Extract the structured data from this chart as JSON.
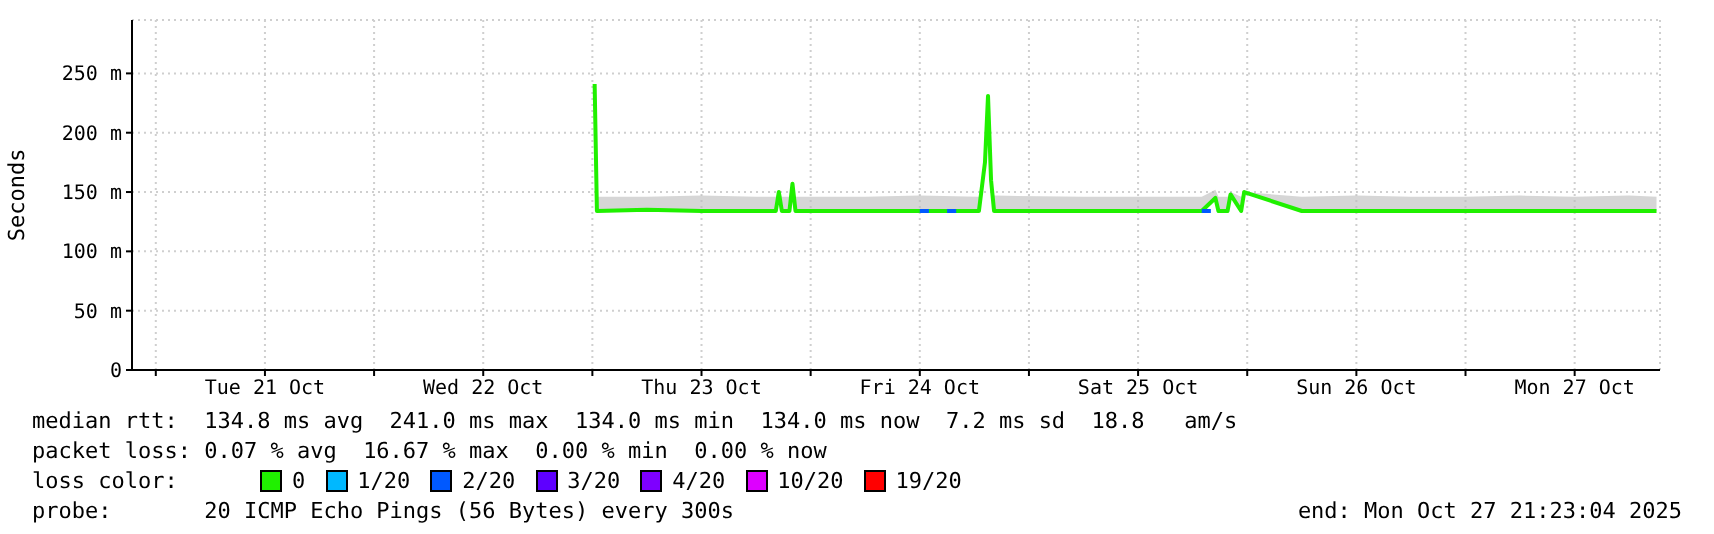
{
  "chart_data": {
    "type": "line",
    "ylabel": "Seconds",
    "legend_title": "loss color:",
    "legend": "bottom",
    "grid": true,
    "marker": "none",
    "line_style": "solid",
    "xlim": [
      "2025-10-20T21:23",
      "2025-10-27T21:23"
    ],
    "xticks": [
      {
        "value": "2025-10-21T00:00",
        "label": null
      },
      {
        "value": "2025-10-21T12:00",
        "label": "Tue 21 Oct"
      },
      {
        "value": "2025-10-22T00:00",
        "label": null
      },
      {
        "value": "2025-10-22T12:00",
        "label": "Wed 22 Oct"
      },
      {
        "value": "2025-10-23T00:00",
        "label": null
      },
      {
        "value": "2025-10-23T12:00",
        "label": "Thu 23 Oct"
      },
      {
        "value": "2025-10-24T00:00",
        "label": null
      },
      {
        "value": "2025-10-24T12:00",
        "label": "Fri 24 Oct"
      },
      {
        "value": "2025-10-25T00:00",
        "label": null
      },
      {
        "value": "2025-10-25T12:00",
        "label": "Sat 25 Oct"
      },
      {
        "value": "2025-10-26T00:00",
        "label": null
      },
      {
        "value": "2025-10-26T12:00",
        "label": "Sun 26 Oct"
      },
      {
        "value": "2025-10-27T00:00",
        "label": null
      },
      {
        "value": "2025-10-27T12:00",
        "label": "Mon 27 Oct"
      }
    ],
    "ylim": [
      0,
      295
    ],
    "yticks": [
      0,
      {
        "value": 50,
        "label": "50 m"
      },
      {
        "value": 100,
        "label": "100 m"
      },
      {
        "value": 150,
        "label": "150 m"
      },
      {
        "value": 200,
        "label": "200 m"
      },
      {
        "value": 250,
        "label": "250 m"
      }
    ],
    "series": [
      {
        "name": "0",
        "color": "#20f000",
        "x": [
          "2025-10-23T00:15",
          "2025-10-23T00:30",
          "2025-10-23T06:00",
          "2025-10-23T12:00",
          "2025-10-23T18:00",
          "2025-10-23T20:10",
          "2025-10-23T20:30",
          "2025-10-23T20:50",
          "2025-10-23T21:40",
          "2025-10-23T22:00",
          "2025-10-23T22:20",
          "2025-10-24T06:00",
          "2025-10-24T12:00",
          "2025-10-24T18:30",
          "2025-10-24T19:10",
          "2025-10-24T19:30",
          "2025-10-24T19:50",
          "2025-10-24T20:10",
          "2025-10-25T06:00",
          "2025-10-25T12:00",
          "2025-10-25T19:00",
          "2025-10-25T20:30",
          "2025-10-25T20:50",
          "2025-10-25T21:50",
          "2025-10-25T22:10",
          "2025-10-25T23:20",
          "2025-10-25T23:40",
          "2025-10-26T06:00",
          "2025-10-26T12:00",
          "2025-10-26T18:00",
          "2025-10-27T00:00",
          "2025-10-27T06:00",
          "2025-10-27T12:00",
          "2025-10-27T18:00",
          "2025-10-27T21:00"
        ],
        "values": [
          241,
          134,
          135,
          134,
          134,
          134,
          150,
          134,
          134,
          157,
          134,
          134,
          134,
          134,
          175,
          231,
          160,
          134,
          134,
          134,
          134,
          145,
          134,
          134,
          148,
          134,
          150,
          134,
          134,
          134,
          134,
          134,
          134,
          134,
          134
        ],
        "lower": [
          241,
          134,
          135,
          134,
          134,
          134,
          150,
          134,
          134,
          157,
          134,
          134,
          134,
          134,
          175,
          231,
          160,
          134,
          134,
          134,
          134,
          145,
          134,
          134,
          148,
          134,
          150,
          134,
          134,
          134,
          134,
          134,
          134,
          134,
          134
        ],
        "upper": [
          241,
          146,
          146,
          147,
          146,
          146,
          150,
          146,
          146,
          157,
          146,
          146,
          147,
          146,
          175,
          231,
          160,
          147,
          146,
          146,
          146,
          152,
          146,
          146,
          150,
          146,
          150,
          146,
          147,
          146,
          146,
          147,
          146,
          147,
          146
        ]
      },
      {
        "name": "1/20",
        "color": "#00b8ff"
      },
      {
        "name": "2/20",
        "color": "#0059ff",
        "x": [
          "2025-10-24T12:00",
          "2025-10-24T13:00",
          "2025-10-24T14:00",
          "2025-10-24T15:00",
          "2025-10-24T16:00",
          "2025-10-24T17:00",
          "2025-10-25T19:00",
          "2025-10-25T20:00"
        ],
        "values": [
          134,
          134,
          null,
          134,
          134,
          null,
          134,
          134
        ]
      },
      {
        "name": "3/20",
        "color": "#5e00ff"
      },
      {
        "name": "4/20",
        "color": "#7e00ff"
      },
      {
        "name": "10/20",
        "color": "#dd00ff"
      },
      {
        "name": "19/20",
        "color": "#ff0000"
      }
    ],
    "annotations": [
      "median rtt:  134.8 ms avg  241.0 ms max  134.0 ms min  134.0 ms now  7.2 ms sd  18.8   am/s",
      "packet loss: 0.07 % avg  16.67 % max  0.00 % min  0.00 % now",
      "probe:       20 ICMP Echo Pings (56 Bytes) every 300s",
      "end: Mon Oct 27 21:23:04 2025"
    ]
  }
}
